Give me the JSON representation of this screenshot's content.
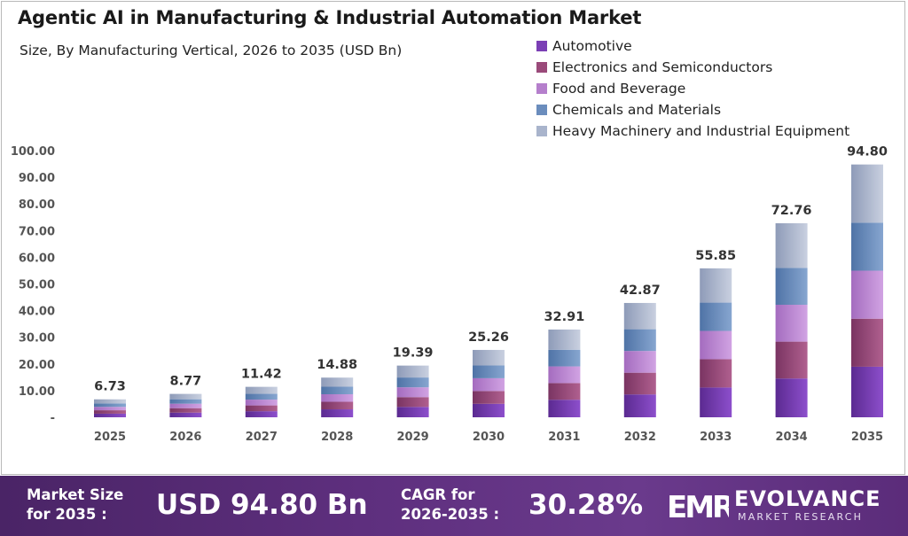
{
  "title": "Agentic AI in Manufacturing & Industrial Automation Market",
  "subtitle": "Size, By Manufacturing Vertical, 2026 to 2035 (USD Bn)",
  "chart_data": {
    "type": "bar",
    "stacked": true,
    "categories": [
      "2025",
      "2026",
      "2027",
      "2028",
      "2029",
      "2030",
      "2031",
      "2032",
      "2033",
      "2034",
      "2035"
    ],
    "totals": [
      6.73,
      8.77,
      11.42,
      14.88,
      19.39,
      25.26,
      32.91,
      42.87,
      55.85,
      72.76,
      94.8
    ],
    "total_labels": [
      "6.73",
      "8.77",
      "11.42",
      "14.88",
      "19.39",
      "25.26",
      "32.91",
      "42.87",
      "55.85",
      "72.76",
      "94.80"
    ],
    "series": [
      {
        "name": "Automotive",
        "values": [
          1.35,
          1.75,
          2.28,
          2.98,
          3.88,
          5.05,
          6.58,
          8.57,
          11.17,
          14.55,
          18.96
        ]
      },
      {
        "name": "Electronics and Semiconductors",
        "values": [
          1.28,
          1.67,
          2.17,
          2.83,
          3.68,
          4.8,
          6.25,
          8.15,
          10.61,
          13.82,
          18.01
        ]
      },
      {
        "name": "Food and Beverage",
        "values": [
          1.28,
          1.67,
          2.17,
          2.83,
          3.68,
          4.8,
          6.25,
          8.15,
          10.61,
          13.82,
          18.01
        ]
      },
      {
        "name": "Chemicals and Materials",
        "values": [
          1.28,
          1.67,
          2.17,
          2.83,
          3.68,
          4.8,
          6.25,
          8.15,
          10.61,
          13.82,
          18.01
        ]
      },
      {
        "name": "Heavy Machinery and Industrial Equipment",
        "values": [
          1.54,
          2.01,
          2.63,
          3.41,
          4.47,
          5.81,
          7.58,
          9.85,
          12.85,
          16.75,
          21.81
        ]
      }
    ],
    "colors": [
      "#7b3fb5",
      "#9a4a7a",
      "#b57fcc",
      "#6b8dbd",
      "#a9b4cc"
    ],
    "ylim": [
      0,
      100
    ],
    "yticks": [
      0,
      10,
      20,
      30,
      40,
      50,
      60,
      70,
      80,
      90,
      100
    ],
    "ytick_labels": [
      "-",
      "10.00",
      "20.00",
      "30.00",
      "40.00",
      "50.00",
      "60.00",
      "70.00",
      "80.00",
      "90.00",
      "100.00"
    ],
    "grid": false,
    "legend": "top-right"
  },
  "footer": {
    "market_size_label_1": "Market Size",
    "market_size_label_2": "for 2035 :",
    "market_size_value": "USD 94.80 Bn",
    "cagr_label_1": "CAGR for",
    "cagr_label_2": "2026-2035 :",
    "cagr_value": "30.28%",
    "logo_word": "EVOLVANCE",
    "logo_sub": "MARKET RESEARCH",
    "logo_mark": "EMR"
  }
}
